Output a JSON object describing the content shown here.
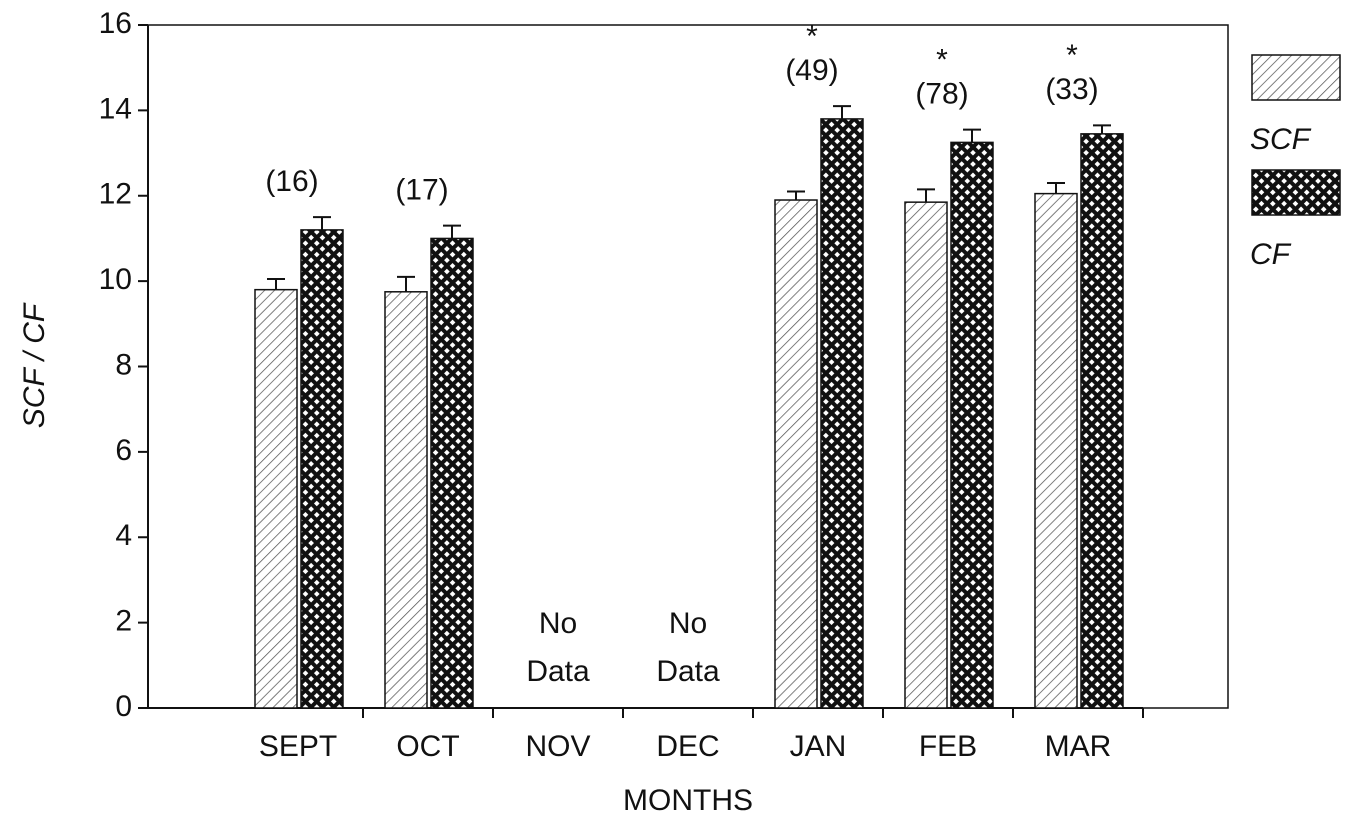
{
  "chart_data": {
    "type": "bar",
    "y_label": "SCF / CF",
    "x_label": "MONTHS",
    "categories": [
      "SEPT",
      "OCT",
      "NOV",
      "DEC",
      "JAN",
      "FEB",
      "MAR"
    ],
    "series": [
      {
        "name": "SCF",
        "color": "#555555",
        "values": [
          9.8,
          9.75,
          null,
          null,
          11.9,
          11.85,
          12.05
        ],
        "errors": [
          0.25,
          0.35,
          null,
          null,
          0.2,
          0.3,
          0.25
        ]
      },
      {
        "name": "CF",
        "color": "#111111",
        "values": [
          11.2,
          11.0,
          null,
          null,
          13.8,
          13.25,
          13.45
        ],
        "errors": [
          0.3,
          0.3,
          null,
          null,
          0.3,
          0.3,
          0.2
        ]
      }
    ],
    "notes": [
      "(16)",
      "(17)",
      "No Data",
      "No Data",
      "(49)",
      "(78)",
      "(33)"
    ],
    "significance": [
      null,
      null,
      null,
      null,
      "*",
      "*",
      "*"
    ],
    "ylim": [
      0,
      16
    ],
    "yticks": [
      0,
      2,
      4,
      6,
      8,
      10,
      12,
      14,
      16
    ],
    "grid": false
  }
}
